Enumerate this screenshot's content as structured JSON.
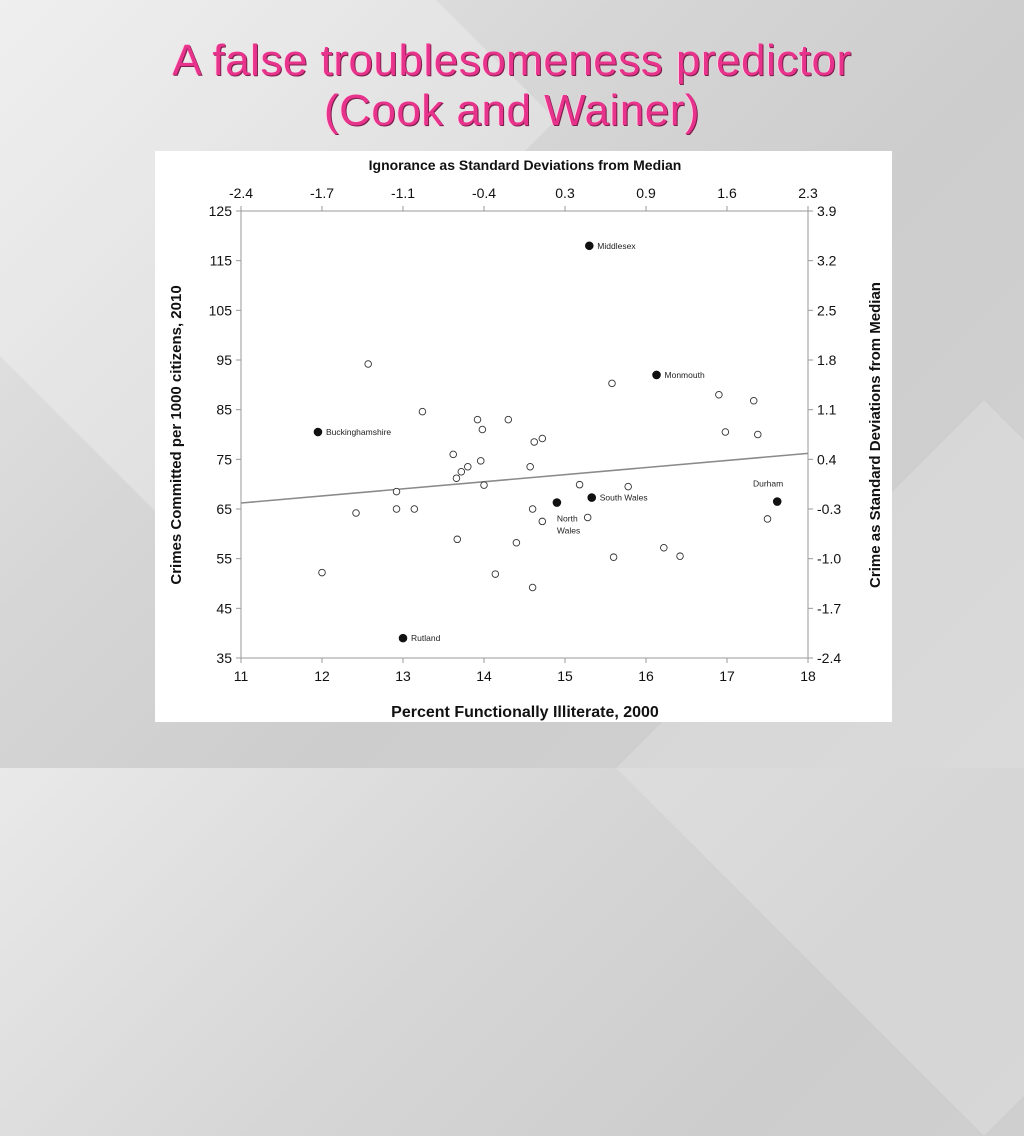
{
  "slide": {
    "title_line1": "A false troublesomeness predictor",
    "title_line2": "(Cook and Wainer)"
  },
  "chart_data": {
    "type": "scatter",
    "title_top_axis": "Ignorance as Standard Deviations from Median",
    "xlabel": "Percent Functionally Illiterate, 2000",
    "ylabel": "Crimes Committed per 1000 citizens, 2010",
    "ylabel_right": "Crime as Standard Deviations from Median",
    "xlim": [
      11,
      18
    ],
    "ylim": [
      35,
      125
    ],
    "x_ticks": [
      "11",
      "12",
      "13",
      "14",
      "15",
      "16",
      "17",
      "18"
    ],
    "y_ticks": [
      "35",
      "45",
      "55",
      "65",
      "75",
      "85",
      "95",
      "105",
      "115",
      "125"
    ],
    "top_ticks": [
      "-2.4",
      "-1.7",
      "-1.1",
      "-0.4",
      "0.3",
      "0.9",
      "1.6",
      "2.3"
    ],
    "right_ticks": [
      "-2.4",
      "-1.7",
      "-1.0",
      "-0.3",
      "0.4",
      "1.1",
      "1.8",
      "2.5",
      "3.2",
      "3.9"
    ],
    "grid": false,
    "trend_line": {
      "x": [
        11,
        18
      ],
      "y": [
        66.2,
        76.2
      ]
    },
    "labeled_points": [
      {
        "name": "Middlesex",
        "x": 15.3,
        "y": 118,
        "label_pos": "right"
      },
      {
        "name": "Monmouth",
        "x": 16.13,
        "y": 92,
        "label_pos": "right"
      },
      {
        "name": "Buckinghamshire",
        "x": 11.95,
        "y": 80.5,
        "label_pos": "right"
      },
      {
        "name": "South Wales",
        "x": 15.33,
        "y": 67.3,
        "label_pos": "right"
      },
      {
        "name": "North Wales",
        "x": 14.9,
        "y": 66.3,
        "label_pos": "below"
      },
      {
        "name": "Durham",
        "x": 17.62,
        "y": 66.5,
        "label_pos": "above"
      },
      {
        "name": "Rutland",
        "x": 13.0,
        "y": 39,
        "label_pos": "right"
      }
    ],
    "points": [
      {
        "x": 12.57,
        "y": 94.2
      },
      {
        "x": 13.24,
        "y": 84.6
      },
      {
        "x": 13.92,
        "y": 83.0
      },
      {
        "x": 13.98,
        "y": 81.0
      },
      {
        "x": 14.3,
        "y": 83.0
      },
      {
        "x": 14.62,
        "y": 78.5
      },
      {
        "x": 14.72,
        "y": 79.2
      },
      {
        "x": 13.62,
        "y": 76.0
      },
      {
        "x": 13.96,
        "y": 74.7
      },
      {
        "x": 13.8,
        "y": 73.5
      },
      {
        "x": 13.72,
        "y": 72.5
      },
      {
        "x": 13.66,
        "y": 71.2
      },
      {
        "x": 14.0,
        "y": 69.8
      },
      {
        "x": 14.57,
        "y": 73.5
      },
      {
        "x": 15.18,
        "y": 69.9
      },
      {
        "x": 15.78,
        "y": 69.5
      },
      {
        "x": 12.92,
        "y": 68.5
      },
      {
        "x": 12.42,
        "y": 64.2
      },
      {
        "x": 12.92,
        "y": 65.0
      },
      {
        "x": 13.14,
        "y": 65.0
      },
      {
        "x": 14.6,
        "y": 65.0
      },
      {
        "x": 14.72,
        "y": 62.5
      },
      {
        "x": 15.28,
        "y": 63.3
      },
      {
        "x": 13.67,
        "y": 58.9
      },
      {
        "x": 14.4,
        "y": 58.2
      },
      {
        "x": 15.58,
        "y": 90.3
      },
      {
        "x": 16.9,
        "y": 88.0
      },
      {
        "x": 17.33,
        "y": 86.8
      },
      {
        "x": 16.98,
        "y": 80.5
      },
      {
        "x": 17.38,
        "y": 80.0
      },
      {
        "x": 17.5,
        "y": 63.0
      },
      {
        "x": 16.22,
        "y": 57.2
      },
      {
        "x": 16.42,
        "y": 55.5
      },
      {
        "x": 15.6,
        "y": 55.3
      },
      {
        "x": 12.0,
        "y": 52.2
      },
      {
        "x": 14.14,
        "y": 51.9
      },
      {
        "x": 14.6,
        "y": 49.2
      }
    ]
  }
}
